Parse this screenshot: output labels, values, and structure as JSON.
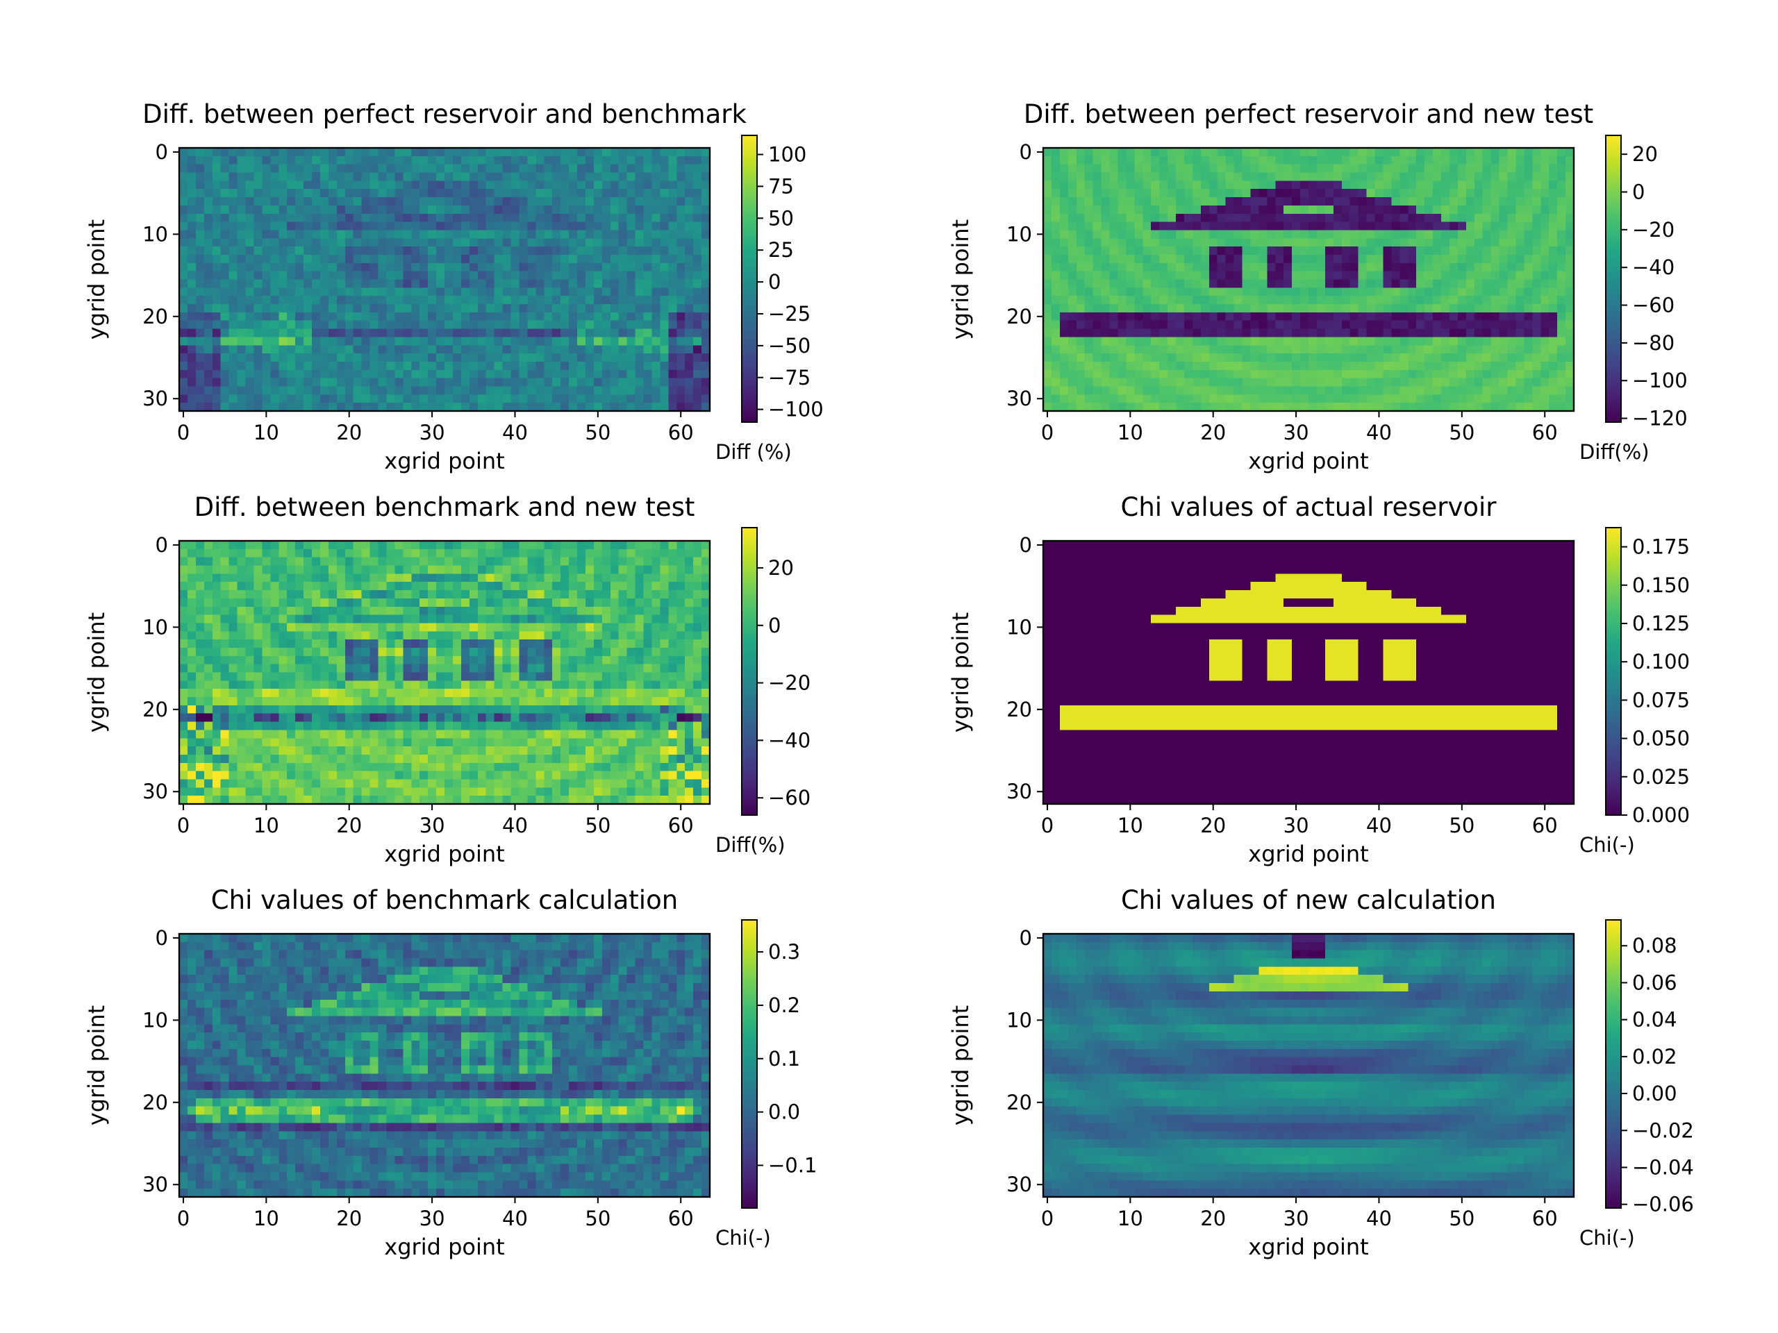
{
  "chart_data": [
    {
      "type": "heatmap",
      "title": "Diff. between perfect reservoir and benchmark",
      "xlabel": "xgrid point",
      "ylabel": "ygrid point",
      "colorbar_label": "Diff (%)",
      "colormap": "viridis",
      "grid": false,
      "xlim": [
        -0.5,
        63.5
      ],
      "ylim": [
        31.5,
        -0.5
      ],
      "xticks": [
        0,
        10,
        20,
        30,
        40,
        50,
        60
      ],
      "yticks": [
        0,
        10,
        20,
        30
      ],
      "xtick_labels": [
        "0",
        "10",
        "20",
        "30",
        "40",
        "50",
        "60"
      ],
      "ytick_labels": [
        "0",
        "10",
        "20",
        "30"
      ],
      "vrange": [
        -110,
        115
      ],
      "cticks": [
        -100,
        -75,
        -50,
        -25,
        0,
        25,
        50,
        75,
        100
      ],
      "ctick_labels": [
        "−100",
        "−75",
        "−50",
        "−25",
        "0",
        "25",
        "50",
        "75",
        "100"
      ],
      "grid_size": [
        64,
        32
      ],
      "pattern": "benchDiff"
    },
    {
      "type": "heatmap",
      "title": "Diff. between perfect reservoir and new test",
      "xlabel": "xgrid point",
      "ylabel": "ygrid point",
      "colorbar_label": "Diff(%)",
      "colormap": "viridis",
      "grid": false,
      "xlim": [
        -0.5,
        63.5
      ],
      "ylim": [
        31.5,
        -0.5
      ],
      "xticks": [
        0,
        10,
        20,
        30,
        40,
        50,
        60
      ],
      "yticks": [
        0,
        10,
        20,
        30
      ],
      "xtick_labels": [
        "0",
        "10",
        "20",
        "30",
        "40",
        "50",
        "60"
      ],
      "ytick_labels": [
        "0",
        "10",
        "20",
        "30"
      ],
      "vrange": [
        -122,
        30
      ],
      "cticks": [
        -120,
        -100,
        -80,
        -60,
        -40,
        -20,
        0,
        20
      ],
      "ctick_labels": [
        "−120",
        "−100",
        "−80",
        "−60",
        "−40",
        "−20",
        "0",
        "20"
      ],
      "grid_size": [
        64,
        32
      ],
      "pattern": "newDiff"
    },
    {
      "type": "heatmap",
      "title": "Diff. between benchmark and new test",
      "xlabel": "xgrid point",
      "ylabel": "ygrid point",
      "colorbar_label": "Diff(%)",
      "colormap": "viridis",
      "grid": false,
      "xlim": [
        -0.5,
        63.5
      ],
      "ylim": [
        31.5,
        -0.5
      ],
      "xticks": [
        0,
        10,
        20,
        30,
        40,
        50,
        60
      ],
      "yticks": [
        0,
        10,
        20,
        30
      ],
      "xtick_labels": [
        "0",
        "10",
        "20",
        "30",
        "40",
        "50",
        "60"
      ],
      "ytick_labels": [
        "0",
        "10",
        "20",
        "30"
      ],
      "vrange": [
        -66,
        34
      ],
      "cticks": [
        -60,
        -40,
        -20,
        0,
        20
      ],
      "ctick_labels": [
        "−60",
        "−40",
        "−20",
        "0",
        "20"
      ],
      "grid_size": [
        64,
        32
      ],
      "pattern": "benchNew"
    },
    {
      "type": "heatmap",
      "title": "Chi values of actual reservoir",
      "xlabel": "xgrid point",
      "ylabel": "ygrid point",
      "colorbar_label": "Chi(-)",
      "colormap": "viridis",
      "grid": false,
      "xlim": [
        -0.5,
        63.5
      ],
      "ylim": [
        31.5,
        -0.5
      ],
      "xticks": [
        0,
        10,
        20,
        30,
        40,
        50,
        60
      ],
      "yticks": [
        0,
        10,
        20,
        30
      ],
      "xtick_labels": [
        "0",
        "10",
        "20",
        "30",
        "40",
        "50",
        "60"
      ],
      "ytick_labels": [
        "0",
        "10",
        "20",
        "30"
      ],
      "vrange": [
        0,
        0.1875
      ],
      "cticks": [
        0,
        0.025,
        0.05,
        0.075,
        0.1,
        0.125,
        0.15,
        0.175
      ],
      "ctick_labels": [
        "0.000",
        "0.025",
        "0.050",
        "0.075",
        "0.100",
        "0.125",
        "0.150",
        "0.175"
      ],
      "grid_size": [
        64,
        32
      ],
      "pattern": "actual"
    },
    {
      "type": "heatmap",
      "title": "Chi values of benchmark calculation",
      "xlabel": "xgrid point",
      "ylabel": "ygrid point",
      "colorbar_label": "Chi(-)",
      "colormap": "viridis",
      "grid": false,
      "xlim": [
        -0.5,
        63.5
      ],
      "ylim": [
        31.5,
        -0.5
      ],
      "xticks": [
        0,
        10,
        20,
        30,
        40,
        50,
        60
      ],
      "yticks": [
        0,
        10,
        20,
        30
      ],
      "xtick_labels": [
        "0",
        "10",
        "20",
        "30",
        "40",
        "50",
        "60"
      ],
      "ytick_labels": [
        "0",
        "10",
        "20",
        "30"
      ],
      "vrange": [
        -0.18,
        0.36
      ],
      "cticks": [
        -0.1,
        0.0,
        0.1,
        0.2,
        0.3
      ],
      "ctick_labels": [
        "−0.1",
        "0.0",
        "0.1",
        "0.2",
        "0.3"
      ],
      "grid_size": [
        64,
        32
      ],
      "pattern": "benchChi"
    },
    {
      "type": "heatmap",
      "title": "Chi values of new calculation",
      "xlabel": "xgrid point",
      "ylabel": "ygrid point",
      "colorbar_label": "Chi(-)",
      "colormap": "viridis",
      "grid": false,
      "xlim": [
        -0.5,
        63.5
      ],
      "ylim": [
        31.5,
        -0.5
      ],
      "xticks": [
        0,
        10,
        20,
        30,
        40,
        50,
        60
      ],
      "yticks": [
        0,
        10,
        20,
        30
      ],
      "xtick_labels": [
        "0",
        "10",
        "20",
        "30",
        "40",
        "50",
        "60"
      ],
      "ytick_labels": [
        "0",
        "10",
        "20",
        "30"
      ],
      "vrange": [
        -0.062,
        0.094
      ],
      "cticks": [
        -0.06,
        -0.04,
        -0.02,
        0.0,
        0.02,
        0.04,
        0.06,
        0.08
      ],
      "ctick_labels": [
        "−0.06",
        "−0.04",
        "−0.02",
        "0.00",
        "0.02",
        "0.04",
        "0.06",
        "0.08"
      ],
      "grid_size": [
        64,
        32
      ],
      "pattern": "newChi"
    }
  ]
}
